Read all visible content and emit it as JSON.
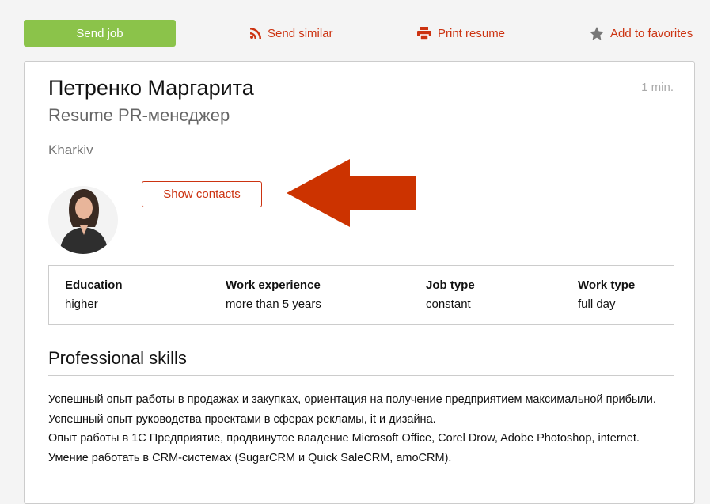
{
  "toolbar": {
    "send_job": "Send job",
    "send_similar": "Send similar",
    "print_resume": "Print resume",
    "add_favorites": "Add to favorites"
  },
  "resume": {
    "name": "Петренко Маргарита",
    "time": "1 min.",
    "title": "Resume PR-менеджер",
    "city": "Kharkiv",
    "show_contacts": "Show contacts"
  },
  "info": [
    {
      "label": "Education",
      "value": "higher"
    },
    {
      "label": "Work experience",
      "value": "more than 5 years"
    },
    {
      "label": "Job type",
      "value": "constant"
    },
    {
      "label": "Work type",
      "value": "full day"
    }
  ],
  "skills": {
    "heading": "Professional skills",
    "lines": [
      "Успешный опыт работы в продажах и закупках, ориентация на получение предприятием максимальной прибыли.",
      "Успешный опыт руководства проектами в сферах рекламы, it и дизайна.",
      "Опыт работы в 1С Предприятие, продвинутое владение Microsoft Office, Corel Drow, Adobe Photoshop, internet.",
      "Умение работать в CRM-системах (SugarCRM и Quick SaleCRM, amoCRM)."
    ]
  },
  "colors": {
    "accent": "#cc3311",
    "green": "#8bc34a"
  }
}
